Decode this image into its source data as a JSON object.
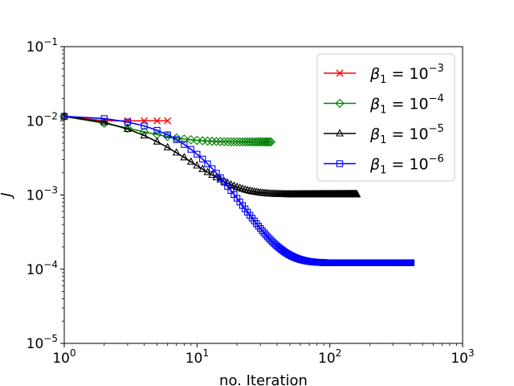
{
  "chart_data": {
    "type": "line",
    "xscale": "log",
    "yscale": "log",
    "xlim": [
      1,
      1000
    ],
    "ylim": [
      1e-05,
      0.1
    ],
    "xlabel": "no. Iteration",
    "ylabel": "J",
    "x_ticks": [
      {
        "value": 1,
        "base": "10",
        "exp": "0"
      },
      {
        "value": 10,
        "base": "10",
        "exp": "1"
      },
      {
        "value": 100,
        "base": "10",
        "exp": "2"
      },
      {
        "value": 1000,
        "base": "10",
        "exp": "3"
      }
    ],
    "y_ticks": [
      {
        "value": 1e-05,
        "base": "10",
        "exp": "−5"
      },
      {
        "value": 0.0001,
        "base": "10",
        "exp": "−4"
      },
      {
        "value": 0.001,
        "base": "10",
        "exp": "−3"
      },
      {
        "value": 0.01,
        "base": "10",
        "exp": "−2"
      },
      {
        "value": 0.1,
        "base": "10",
        "exp": "−1"
      }
    ],
    "grid": false,
    "legend_position": "top-right",
    "series": [
      {
        "label_prefix": "β",
        "label_sub": "1",
        "label_eq": " = 10",
        "label_exp": "−3",
        "color": "#ff0000",
        "marker": "x",
        "n": 6,
        "y_start": 0.0115,
        "y_end": 0.01,
        "shape": "fast"
      },
      {
        "label_prefix": "β",
        "label_sub": "1",
        "label_eq": " = 10",
        "label_exp": "−4",
        "color": "#008000",
        "marker": "diamond",
        "n": 36,
        "y_start": 0.0115,
        "y_end": 0.0052,
        "shape": "medium"
      },
      {
        "label_prefix": "β",
        "label_sub": "1",
        "label_eq": " = 10",
        "label_exp": "−5",
        "color": "#000000",
        "marker": "triangle",
        "n": 160,
        "y_start": 0.0115,
        "y_end": 0.00102,
        "shape": "slow"
      },
      {
        "label_prefix": "β",
        "label_sub": "1",
        "label_eq": " = 10",
        "label_exp": "−6",
        "color": "#0000ff",
        "marker": "square",
        "n": 410,
        "y_start": 0.0115,
        "y_end": 0.000122,
        "shape": "slowest"
      }
    ]
  }
}
